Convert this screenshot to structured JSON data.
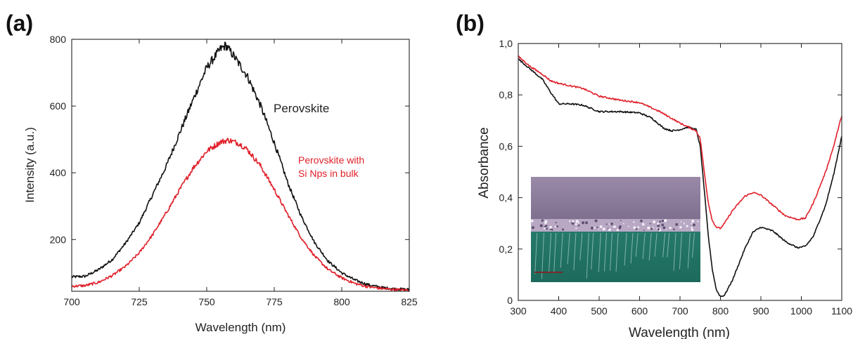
{
  "chart_data": [
    {
      "panel_label": "(a)",
      "type": "line",
      "xlabel": "Wavelength (nm)",
      "ylabel": "Intensity (a.u.)",
      "xlim": [
        700,
        825
      ],
      "ylim": [
        45,
        800
      ],
      "xticks": [
        700,
        725,
        750,
        775,
        800,
        825
      ],
      "yticks": [
        200,
        400,
        600,
        800
      ],
      "grid": false,
      "series": [
        {
          "name": "Perovskite",
          "color": "#111111",
          "x": [
            700,
            705,
            710,
            715,
            720,
            725,
            730,
            735,
            740,
            745,
            750,
            755,
            757,
            760,
            765,
            770,
            775,
            780,
            785,
            790,
            795,
            800,
            805,
            810,
            815,
            820,
            825
          ],
          "y": [
            88,
            90,
            110,
            140,
            190,
            250,
            335,
            420,
            520,
            620,
            715,
            770,
            782,
            750,
            690,
            600,
            490,
            370,
            270,
            190,
            135,
            100,
            78,
            64,
            56,
            52,
            50
          ]
        },
        {
          "name": "Perovskite with Si Nps in bulk",
          "color": "#e0202a",
          "x": [
            700,
            705,
            710,
            715,
            720,
            725,
            730,
            735,
            740,
            745,
            750,
            755,
            758,
            762,
            765,
            770,
            775,
            780,
            785,
            790,
            795,
            800,
            805,
            810,
            815,
            820,
            825
          ],
          "y": [
            60,
            62,
            72,
            92,
            120,
            160,
            215,
            280,
            350,
            415,
            465,
            492,
            498,
            488,
            470,
            420,
            350,
            275,
            205,
            150,
            110,
            85,
            68,
            58,
            53,
            50,
            48
          ]
        }
      ],
      "annotations": [
        "Perovskite",
        "Perovskite with",
        "Si Nps in bulk"
      ]
    },
    {
      "panel_label": "(b)",
      "type": "line",
      "xlabel": "Wavelength (nm)",
      "ylabel": "Absorbance",
      "xlim": [
        300,
        1100
      ],
      "ylim": [
        0,
        1.0
      ],
      "xticks": [
        300,
        400,
        500,
        600,
        700,
        800,
        900,
        1000,
        1100
      ],
      "yticks": [
        0,
        0.2,
        0.4,
        0.6,
        0.8,
        1.0
      ],
      "ytick_labels": [
        "0",
        "0,2",
        "0,4",
        "0,6",
        "0,8",
        "1,0"
      ],
      "grid": false,
      "series": [
        {
          "color": "#111111",
          "x": [
            300,
            330,
            360,
            380,
            400,
            430,
            460,
            500,
            550,
            600,
            630,
            660,
            680,
            700,
            720,
            740,
            750,
            760,
            770,
            780,
            790,
            800,
            810,
            830,
            860,
            880,
            900,
            930,
            960,
            990,
            1010,
            1030,
            1060,
            1080,
            1100
          ],
          "y": [
            0.94,
            0.9,
            0.86,
            0.81,
            0.765,
            0.765,
            0.76,
            0.735,
            0.735,
            0.73,
            0.71,
            0.67,
            0.66,
            0.665,
            0.675,
            0.665,
            0.6,
            0.43,
            0.25,
            0.12,
            0.04,
            0.015,
            0.02,
            0.08,
            0.2,
            0.265,
            0.285,
            0.27,
            0.23,
            0.205,
            0.21,
            0.25,
            0.37,
            0.49,
            0.64
          ]
        },
        {
          "color": "#e0202a",
          "x": [
            300,
            330,
            360,
            380,
            400,
            430,
            460,
            500,
            550,
            600,
            650,
            700,
            720,
            740,
            750,
            760,
            770,
            780,
            790,
            800,
            810,
            830,
            860,
            880,
            900,
            930,
            960,
            990,
            1010,
            1030,
            1060,
            1080,
            1100
          ],
          "y": [
            0.95,
            0.91,
            0.88,
            0.855,
            0.845,
            0.835,
            0.825,
            0.795,
            0.78,
            0.77,
            0.735,
            0.69,
            0.675,
            0.66,
            0.63,
            0.5,
            0.38,
            0.31,
            0.285,
            0.28,
            0.3,
            0.35,
            0.405,
            0.42,
            0.41,
            0.37,
            0.33,
            0.315,
            0.32,
            0.38,
            0.5,
            0.6,
            0.72
          ]
        }
      ]
    }
  ]
}
